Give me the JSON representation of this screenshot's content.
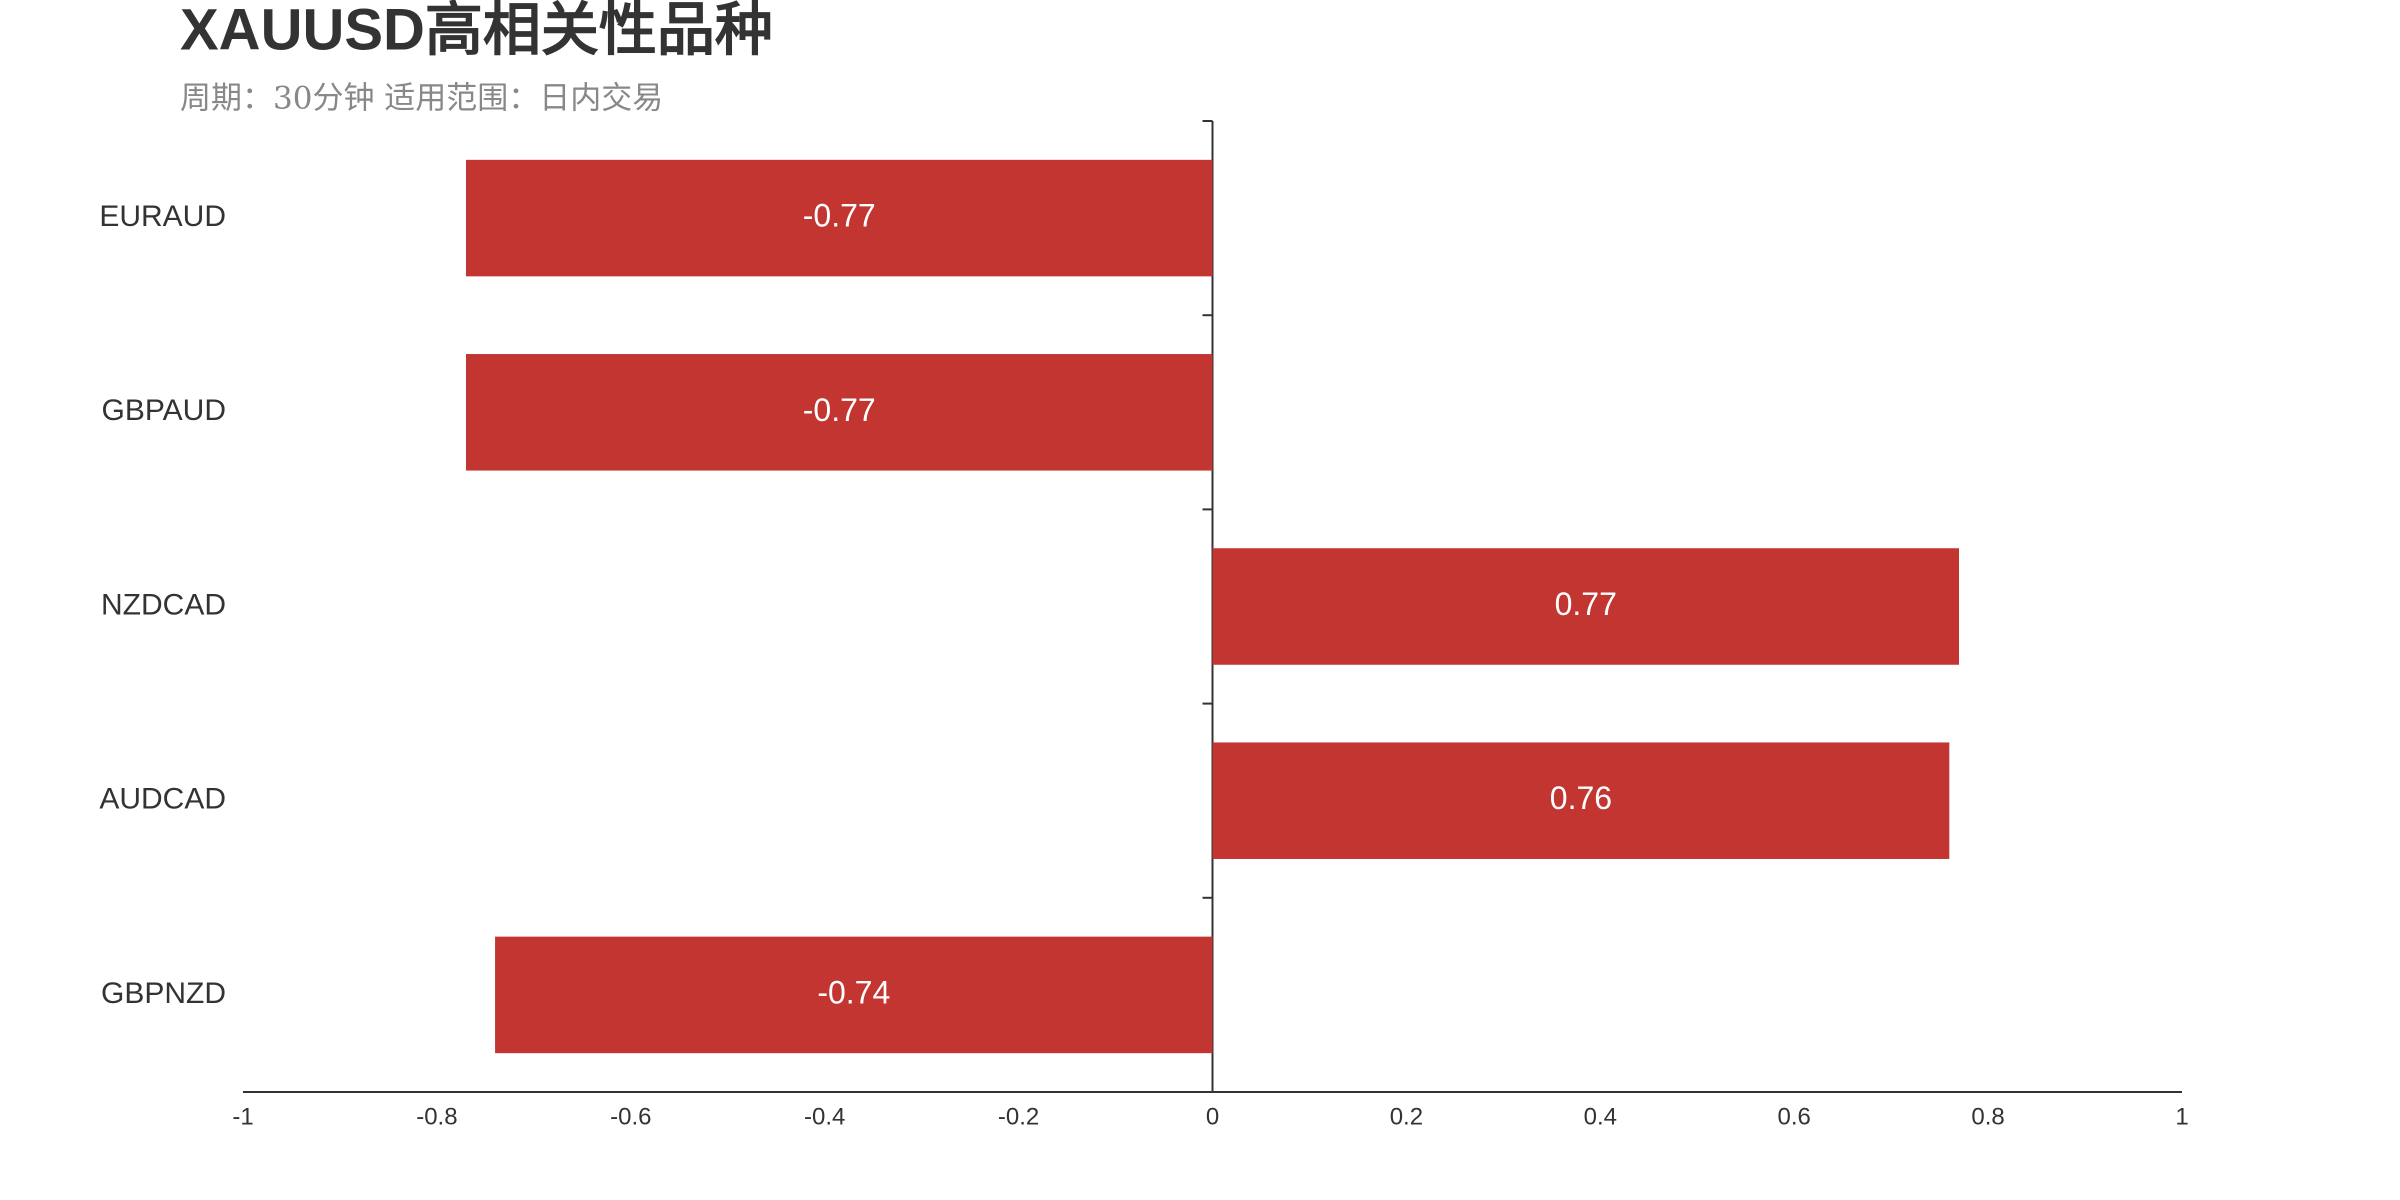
{
  "chart_data": {
    "type": "bar",
    "orientation": "horizontal",
    "title": "XAUUSD高相关性品种",
    "subtitle": "周期：30分钟 适用范围：日内交易",
    "categories": [
      "EURAUD",
      "GBPAUD",
      "NZDCAD",
      "AUDCAD",
      "GBPNZD"
    ],
    "values": [
      -0.77,
      -0.77,
      0.77,
      0.76,
      -0.74
    ],
    "color": "#c23531",
    "xlim": [
      -1,
      1
    ],
    "xticks": [
      -1,
      -0.8,
      -0.6,
      -0.4,
      -0.2,
      0,
      0.2,
      0.4,
      0.6,
      0.8,
      1
    ],
    "grid": false
  }
}
